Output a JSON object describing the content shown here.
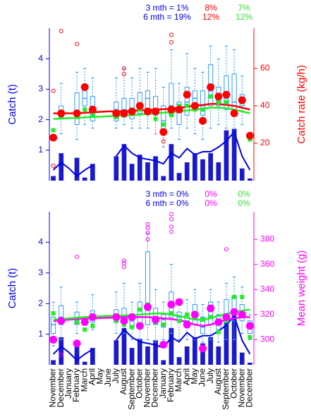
{
  "chart_data": [
    {
      "type": "combo",
      "left_label": "Catch (t)",
      "right_label": "Catch rate (kg/h)",
      "left_color": "#0000ee",
      "right_color": "#ff0000",
      "annotations": [
        [
          {
            "text": "3 mth = 1%",
            "color": "#0000ee"
          },
          {
            "text": "8%",
            "color": "#ff0000"
          },
          {
            "text": "7%",
            "color": "#22ee22"
          }
        ],
        [
          {
            "text": "6 mth = 19%",
            "color": "#0000ee"
          },
          {
            "text": "12%",
            "color": "#ff0000"
          },
          {
            "text": "12%",
            "color": "#22ee22"
          }
        ]
      ],
      "ylim": [
        0,
        5
      ],
      "yticks": [
        1,
        2,
        3,
        4
      ],
      "y2lim": [
        0,
        81.5
      ],
      "y2ticks": [
        20,
        40,
        60
      ],
      "bars": {
        "color": "#1a1acc",
        "values": [
          0.15,
          0.9,
          null,
          0.75,
          0.1,
          0.55,
          null,
          null,
          0.8,
          1.2,
          0.55,
          0.85,
          0.6,
          0.8,
          0.15,
          1.2,
          0.25,
          0.6,
          0.9,
          0.7,
          0.9,
          0.6,
          1.65,
          1.7,
          0.4,
          0.07
        ]
      },
      "catch_line": {
        "color": "#0000ee",
        "values": [
          0.35,
          0.6,
          0.4,
          0.15,
          0.35,
          0.5,
          null,
          null,
          0.8,
          1.15,
          0.9,
          0.75,
          0.7,
          0.65,
          0.55,
          0.9,
          0.75,
          1.05,
          0.85,
          0.95,
          0.95,
          1.1,
          1.3,
          1.6,
          0.8,
          0.35
        ]
      },
      "boxes": {
        "color": "#3399ff",
        "values": [
          null,
          [
            25,
            33,
            36,
            40,
            52
          ],
          null,
          [
            22,
            30,
            36,
            47,
            58
          ],
          [
            30,
            40,
            44,
            48,
            60
          ],
          [
            28,
            32,
            36,
            45,
            55
          ],
          null,
          null,
          [
            28,
            32,
            38,
            42,
            55
          ],
          [
            30,
            34,
            38,
            44,
            60
          ],
          [
            28,
            33,
            36,
            44,
            55
          ],
          [
            28,
            36,
            40,
            47,
            60
          ],
          [
            28,
            38,
            44,
            48,
            58
          ],
          [
            25,
            35,
            38,
            45,
            60
          ],
          [
            18,
            27,
            32,
            40,
            50
          ],
          [
            28,
            35,
            40,
            52,
            70
          ],
          [
            22,
            30,
            38,
            42,
            52
          ],
          [
            28,
            35,
            42,
            50,
            68
          ],
          [
            25,
            38,
            44,
            48,
            60
          ],
          [
            22,
            35,
            40,
            48,
            58
          ],
          [
            28,
            40,
            48,
            62,
            72
          ],
          [
            30,
            40,
            44,
            50,
            65
          ],
          [
            28,
            38,
            44,
            56,
            72
          ],
          [
            25,
            35,
            42,
            57,
            70
          ],
          [
            30,
            40,
            42,
            46,
            56
          ],
          null
        ]
      },
      "outliers": {
        "color": "#ff0000",
        "values": [
          [
            48,
            8
          ],
          [
            80
          ],
          [],
          [
            73
          ],
          [],
          [],
          [],
          [],
          [],
          [
            57,
            60
          ],
          [],
          [],
          [],
          [],
          [
            21
          ],
          [
            78,
            74
          ],
          [],
          [],
          [],
          [],
          [],
          [],
          [],
          [],
          [],
          []
        ]
      },
      "means": {
        "color": "#ff0000",
        "values": [
          23,
          36,
          null,
          36,
          50,
          38,
          null,
          null,
          36,
          36,
          37,
          40,
          37,
          37,
          26,
          38,
          38,
          46,
          40,
          32,
          50,
          45,
          46,
          36,
          43,
          24
        ]
      },
      "squares": {
        "color": "#22ee22",
        "values": [
          27,
          34,
          null,
          34,
          38,
          35,
          null,
          null,
          34,
          35,
          38,
          38,
          37,
          33,
          30,
          35,
          40,
          40,
          38,
          38,
          45,
          42,
          42,
          37,
          42,
          22
        ]
      },
      "smooth_lines": [
        {
          "color": "#ff0000",
          "values": [
            36,
            36,
            36,
            36,
            36.3,
            36.5,
            36.8,
            37,
            37,
            37.2,
            37.4,
            37.6,
            37.8,
            38,
            38.2,
            38.5,
            39,
            39.5,
            40,
            40.5,
            41,
            41,
            40.5,
            40,
            39,
            38
          ]
        },
        {
          "color": "#22ee22",
          "values": [
            33,
            33.2,
            33.4,
            33.6,
            33.8,
            34,
            34.2,
            34.4,
            34.6,
            34.8,
            35,
            35.3,
            35.6,
            36,
            36.3,
            36.6,
            37,
            37.5,
            38,
            38.5,
            39,
            39,
            38.7,
            38,
            37,
            36
          ]
        }
      ]
    },
    {
      "type": "combo",
      "left_label": "Catch (t)",
      "right_label": "Mean weight (g)",
      "left_color": "#0000ee",
      "right_color": "#ff00ff",
      "annotations": [
        [
          {
            "text": "3 mth = 0%",
            "color": "#0000ee"
          },
          {
            "text": "0%",
            "color": "#ff00ff"
          },
          {
            "text": "0%",
            "color": "#22ee22"
          }
        ],
        [
          {
            "text": "6 mth = 0%",
            "color": "#0000ee"
          },
          {
            "text": "0%",
            "color": "#ff00ff"
          },
          {
            "text": "0%",
            "color": "#22ee22"
          }
        ]
      ],
      "categories": [
        "November",
        "December",
        "January",
        "February",
        "March",
        "April",
        "May",
        "June",
        "July",
        "August",
        "September",
        "October",
        "November",
        "December",
        "January",
        "February",
        "March",
        "April",
        "May",
        "June",
        "July",
        "August",
        "September",
        "October",
        "November",
        "December"
      ],
      "ylim": [
        0,
        5
      ],
      "yticks": [
        1,
        2,
        3,
        4
      ],
      "y2lim": [
        280,
        402
      ],
      "y2ticks": [
        300,
        320,
        340,
        360,
        380
      ],
      "bars": {
        "color": "#1a1acc",
        "values": [
          0.15,
          0.9,
          null,
          0.75,
          0.1,
          0.55,
          null,
          null,
          0.8,
          1.2,
          0.55,
          0.85,
          0.6,
          0.8,
          0.15,
          1.2,
          0.25,
          0.6,
          0.9,
          0.7,
          0.9,
          0.6,
          1.65,
          1.7,
          0.4,
          0.07
        ]
      },
      "catch_line": {
        "color": "#0000ee",
        "values": [
          0.35,
          0.6,
          0.4,
          0.15,
          0.35,
          0.5,
          null,
          null,
          0.8,
          1.15,
          0.9,
          0.75,
          0.7,
          0.65,
          0.55,
          0.9,
          0.75,
          1.05,
          0.85,
          0.95,
          0.95,
          1.1,
          1.3,
          1.6,
          0.8,
          0.35
        ]
      },
      "boxes": {
        "color": "#3399ff",
        "values": [
          [
            295,
            305,
            312,
            318,
            330
          ],
          [
            300,
            312,
            318,
            327,
            342
          ],
          null,
          [
            305,
            312,
            316,
            322,
            330
          ],
          null,
          [
            308,
            314,
            318,
            323,
            336
          ],
          null,
          null,
          [
            305,
            314,
            318,
            324,
            338
          ],
          [
            305,
            314,
            318,
            325,
            345
          ],
          [
            300,
            310,
            315,
            320,
            330
          ],
          [
            300,
            313,
            318,
            330,
            345
          ],
          [
            300,
            312,
            325,
            370,
            385
          ],
          [
            298,
            312,
            318,
            325,
            340
          ],
          [
            300,
            310,
            316,
            320,
            330
          ],
          [
            305,
            318,
            326,
            338,
            360
          ],
          [
            300,
            315,
            318,
            322,
            330
          ],
          [
            300,
            310,
            315,
            320,
            332
          ],
          [
            300,
            312,
            316,
            328,
            340
          ],
          [
            298,
            305,
            310,
            318,
            328
          ],
          [
            300,
            312,
            318,
            330,
            340
          ],
          [
            298,
            308,
            315,
            320,
            330
          ],
          [
            300,
            312,
            320,
            332,
            345
          ],
          [
            300,
            315,
            320,
            335,
            350
          ],
          [
            305,
            315,
            320,
            328,
            342
          ],
          [
            300,
            305,
            310,
            315,
            320
          ]
        ]
      },
      "outliers": {
        "color": "#ff00ff",
        "values": [
          [],
          [
            288
          ],
          [],
          [
            366
          ],
          [],
          [],
          [],
          [],
          [],
          [
            361,
            358,
            363
          ],
          [],
          [],
          [
            392,
            389,
            385,
            380
          ],
          [],
          [],
          [
            400,
            396,
            390,
            386
          ],
          [],
          [],
          [],
          [],
          [],
          [],
          [
            372
          ],
          [],
          [],
          []
        ]
      },
      "means": {
        "color": "#ff00ff",
        "values": [
          300,
          315,
          null,
          297,
          314,
          318,
          null,
          null,
          318,
          315,
          318,
          311,
          326,
          316,
          296,
          328,
          330,
          312,
          320,
          293,
          325,
          314,
          318,
          322,
          320,
          311
        ]
      },
      "squares": {
        "color": "#22ee22",
        "values": [
          321,
          316,
          null,
          314,
          308,
          311,
          null,
          null,
          315,
          312,
          310,
          324,
          328,
          314,
          312,
          321,
          315,
          320,
          318,
          316,
          318,
          306,
          315,
          334,
          334,
          302
        ]
      },
      "smooth_lines": [
        {
          "color": "#ff00ff",
          "values": [
            315,
            315.5,
            316,
            316.5,
            317,
            317,
            317.3,
            317.5,
            317.7,
            318,
            318,
            318,
            318,
            317.5,
            317,
            316.5,
            315.5,
            314,
            312,
            311,
            312,
            314,
            316,
            317,
            318,
            318
          ]
        },
        {
          "color": "#22ee22",
          "values": [
            316,
            316.5,
            317,
            317.5,
            318,
            318.3,
            318.6,
            319,
            319,
            319.3,
            319.5,
            320,
            320.5,
            321,
            321,
            320,
            319,
            317.5,
            316,
            316,
            317,
            319,
            320.5,
            322,
            323,
            324
          ]
        }
      ]
    }
  ]
}
